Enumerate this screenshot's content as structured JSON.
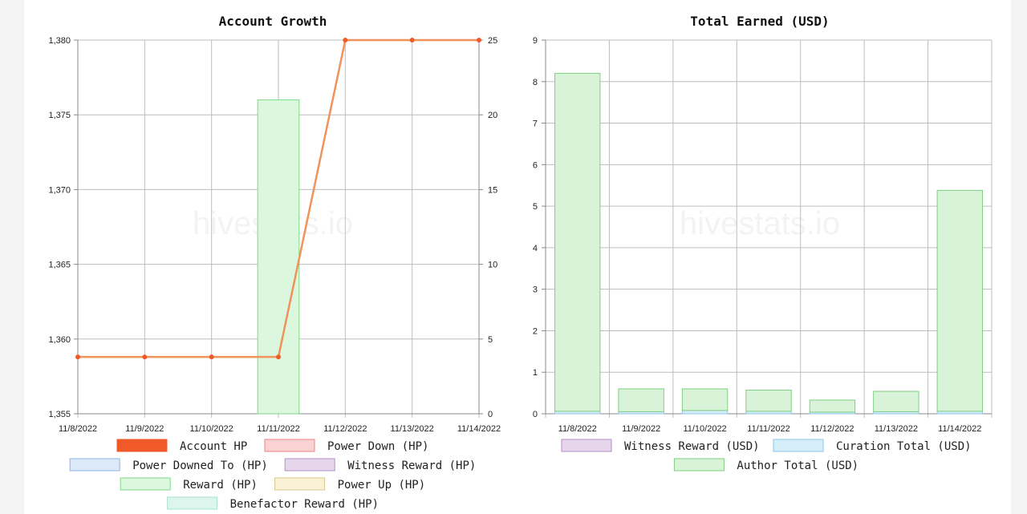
{
  "chart_data": [
    {
      "type": "line",
      "title": "Account Growth",
      "watermark": "hivestats.io",
      "x": [
        "11/8/2022",
        "11/9/2022",
        "11/10/2022",
        "11/11/2022",
        "11/12/2022",
        "11/13/2022",
        "11/14/2022"
      ],
      "y_left": {
        "ticks": [
          "1,355",
          "1,360",
          "1,365",
          "1,370",
          "1,375",
          "1,380"
        ],
        "ylim": [
          1355,
          1380
        ]
      },
      "y_right": {
        "ticks": [
          "0",
          "5",
          "10",
          "15",
          "20",
          "25"
        ],
        "ylim": [
          0,
          25
        ]
      },
      "grid": true,
      "series": [
        {
          "name": "Account HP",
          "kind": "line",
          "axis": "left",
          "values": [
            1358.8,
            1358.8,
            1358.8,
            1358.8,
            1380,
            1380,
            1380
          ],
          "color": "#f05a28",
          "line_color": "#f0935a"
        },
        {
          "name": "Power Down (HP)",
          "kind": "bar",
          "axis": "right",
          "values": [
            0,
            0,
            0,
            0,
            0,
            0,
            0
          ],
          "color": "#f9d3d3",
          "border": "#f08080"
        },
        {
          "name": "Power Downed To (HP)",
          "kind": "bar",
          "axis": "right",
          "values": [
            0,
            0,
            0,
            0,
            0,
            0,
            0
          ],
          "color": "#dce9f9",
          "border": "#8ab4e8"
        },
        {
          "name": "Witness Reward (HP)",
          "kind": "bar",
          "axis": "right",
          "values": [
            0,
            0,
            0,
            0,
            0,
            0,
            0
          ],
          "color": "#e6d6ec",
          "border": "#b68ec8"
        },
        {
          "name": "Reward (HP)",
          "kind": "bar",
          "axis": "right",
          "values": [
            0,
            0,
            0,
            21,
            0,
            0,
            0
          ],
          "color": "#dbf7de",
          "border": "#7fd98a"
        },
        {
          "name": "Power Up (HP)",
          "kind": "bar",
          "axis": "right",
          "values": [
            0,
            0,
            0,
            0,
            0,
            0,
            0
          ],
          "color": "#f8f1d6",
          "border": "#d8c88a"
        },
        {
          "name": "Benefactor Reward (HP)",
          "kind": "bar",
          "axis": "right",
          "values": [
            0,
            0,
            0,
            0,
            0,
            0,
            0
          ],
          "color": "#dcf6ee",
          "border": "#a8e2d0"
        }
      ]
    },
    {
      "type": "bar",
      "stacked": true,
      "title": "Total Earned (USD)",
      "watermark": "hivestats.io",
      "categories": [
        "11/8/2022",
        "11/9/2022",
        "11/10/2022",
        "11/11/2022",
        "11/12/2022",
        "11/13/2022",
        "11/14/2022"
      ],
      "y": {
        "ticks": [
          "0",
          "1",
          "2",
          "3",
          "4",
          "5",
          "6",
          "7",
          "8",
          "9"
        ],
        "ylim": [
          0,
          9
        ]
      },
      "grid": true,
      "series": [
        {
          "name": "Witness Reward (USD)",
          "values": [
            0,
            0,
            0,
            0,
            0,
            0,
            0
          ],
          "color": "#e6d6ec",
          "border": "#b68ec8"
        },
        {
          "name": "Curation Total (USD)",
          "values": [
            0.06,
            0.05,
            0.08,
            0.06,
            0.04,
            0.05,
            0.06
          ],
          "color": "#d6eef9",
          "border": "#8ec6e6"
        },
        {
          "name": "Author Total (USD)",
          "values": [
            8.14,
            0.55,
            0.52,
            0.51,
            0.29,
            0.49,
            5.32
          ],
          "color": "#d8f3d8",
          "border": "#7fcf82"
        }
      ]
    }
  ]
}
